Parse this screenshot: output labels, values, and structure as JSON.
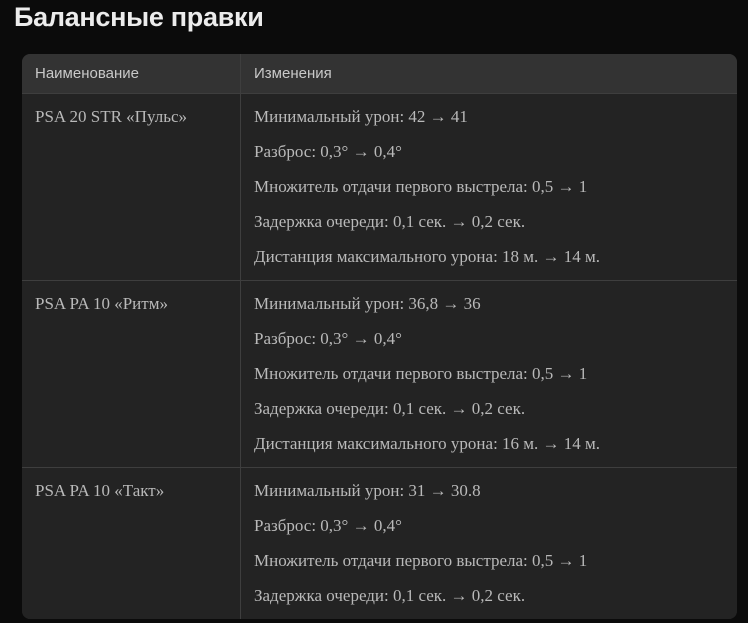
{
  "page": {
    "title": "Балансные правки"
  },
  "table": {
    "columns": [
      "Наименование",
      "Изменения"
    ],
    "rows": [
      {
        "name": "PSA 20 STR «Пульс»",
        "changes": [
          "Минимальный урон: 42 → 41",
          "Разброс: 0,3° → 0,4°",
          "Множитель отдачи первого выстрела: 0,5 → 1",
          "Задержка очереди: 0,1 сек. → 0,2 сек.",
          "Дистанция максимального урона: 18 м. → 14 м."
        ]
      },
      {
        "name": "PSA PA 10 «Ритм»",
        "changes": [
          "Минимальный урон: 36,8 → 36",
          "Разброс: 0,3° → 0,4°",
          "Множитель отдачи первого выстрела: 0,5 → 1",
          "Задержка очереди: 0,1 сек. → 0,2 сек.",
          "Дистанция максимального урона: 16 м. → 14 м."
        ]
      },
      {
        "name": "PSA PA 10 «Такт»",
        "changes": [
          "Минимальный урон: 31 → 30.8",
          "Разброс: 0,3° → 0,4°",
          "Множитель отдачи первого выстрела: 0,5 → 1",
          "Задержка очереди: 0,1 сек. → 0,2 сек."
        ]
      }
    ]
  },
  "colors": {
    "page_background": "#0b0b0b",
    "table_background": "#232323",
    "header_background": "#333333",
    "divider": "#3e3e3e",
    "title_text": "#ececec",
    "header_text": "#c9c9c9",
    "body_text": "#b9b9b9"
  }
}
